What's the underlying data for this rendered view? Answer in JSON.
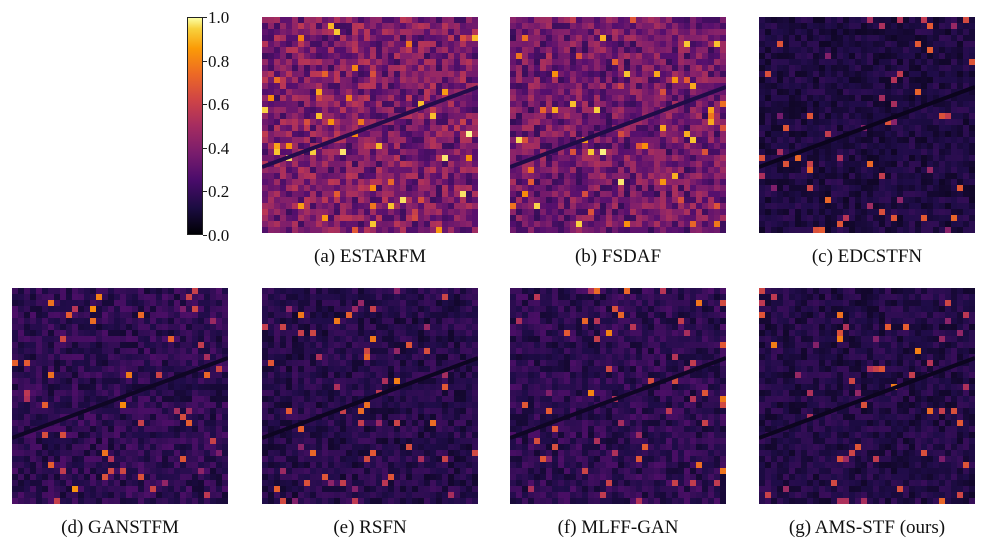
{
  "colorbar": {
    "ticks": [
      "0.0",
      "0.2",
      "0.4",
      "0.6",
      "0.8",
      "1.0"
    ]
  },
  "panels": [
    {
      "caption": "(a) ESTARFM",
      "brightness": 0.35
    },
    {
      "caption": "(b) FSDAF",
      "brightness": 0.32
    },
    {
      "caption": "(c) EDCSTFN",
      "brightness": 0.12
    },
    {
      "caption": "(d) GANSTFM",
      "brightness": 0.16
    },
    {
      "caption": "(e) RSFN",
      "brightness": 0.14
    },
    {
      "caption": "(f) MLFF-GAN",
      "brightness": 0.16
    },
    {
      "caption": "(g) AMS-STF (ours)",
      "brightness": 0.13
    }
  ]
}
